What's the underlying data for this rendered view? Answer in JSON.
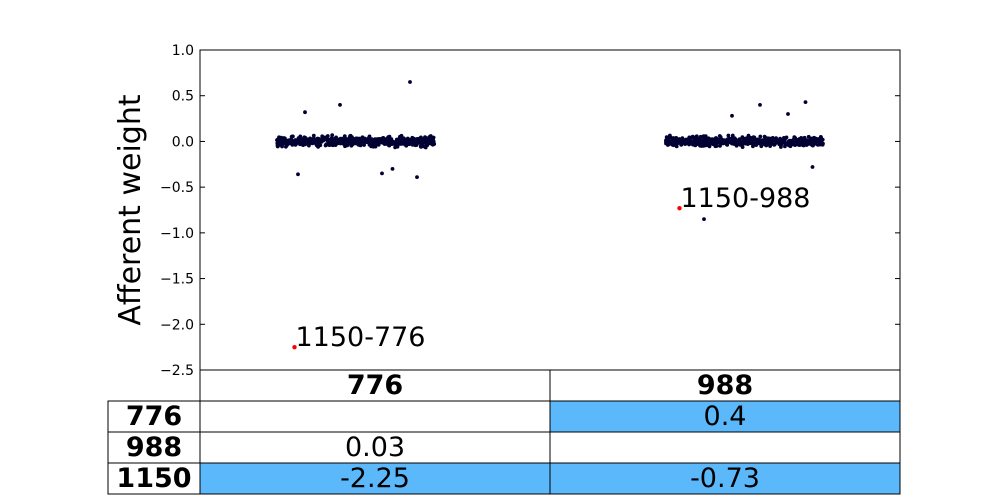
{
  "chart_data": {
    "type": "scatter",
    "ylabel": "Afferent weight",
    "ylim": [
      -2.5,
      1.0
    ],
    "yticks": [
      "1.0",
      "0.5",
      "0.0",
      "−0.5",
      "−1.0",
      "−1.5",
      "−2.0",
      "−2.5"
    ],
    "ytick_values": [
      1.0,
      0.5,
      0.0,
      -0.5,
      -1.0,
      -1.5,
      -2.0,
      -2.5
    ],
    "grid": false,
    "colors": {
      "points": "#000033",
      "highlight": "#ff0000",
      "cell_highlight": "#5bb8fb"
    },
    "clusters": [
      {
        "group": "776",
        "x_range": [
          0.22,
          0.67
        ],
        "spread": 0.05,
        "outliers": [
          [
            0.6,
            0.65
          ],
          [
            0.4,
            0.4
          ],
          [
            0.3,
            0.32
          ],
          [
            0.55,
            -0.3
          ],
          [
            0.62,
            -0.39
          ],
          [
            0.28,
            -0.36
          ],
          [
            0.52,
            -0.35
          ]
        ]
      },
      {
        "group": "988",
        "x_range": [
          1.33,
          1.78
        ],
        "spread": 0.05,
        "outliers": [
          [
            1.44,
            -0.85
          ],
          [
            1.6,
            0.4
          ],
          [
            1.73,
            0.43
          ],
          [
            1.68,
            0.3
          ],
          [
            1.52,
            0.28
          ],
          [
            1.75,
            -0.28
          ]
        ]
      }
    ],
    "highlighted": [
      {
        "label": "1150-776",
        "x": 0.27,
        "y": -2.25
      },
      {
        "label": "1150-988",
        "x": 1.37,
        "y": -0.73
      }
    ],
    "table": {
      "col_labels": [
        "776",
        "988"
      ],
      "row_labels": [
        "776",
        "988",
        "1150"
      ],
      "cells": [
        [
          "",
          "0.4"
        ],
        [
          "0.03",
          ""
        ],
        [
          "-2.25",
          "-0.73"
        ]
      ],
      "highlight": [
        [
          false,
          true
        ],
        [
          false,
          false
        ],
        [
          true,
          true
        ]
      ]
    }
  }
}
